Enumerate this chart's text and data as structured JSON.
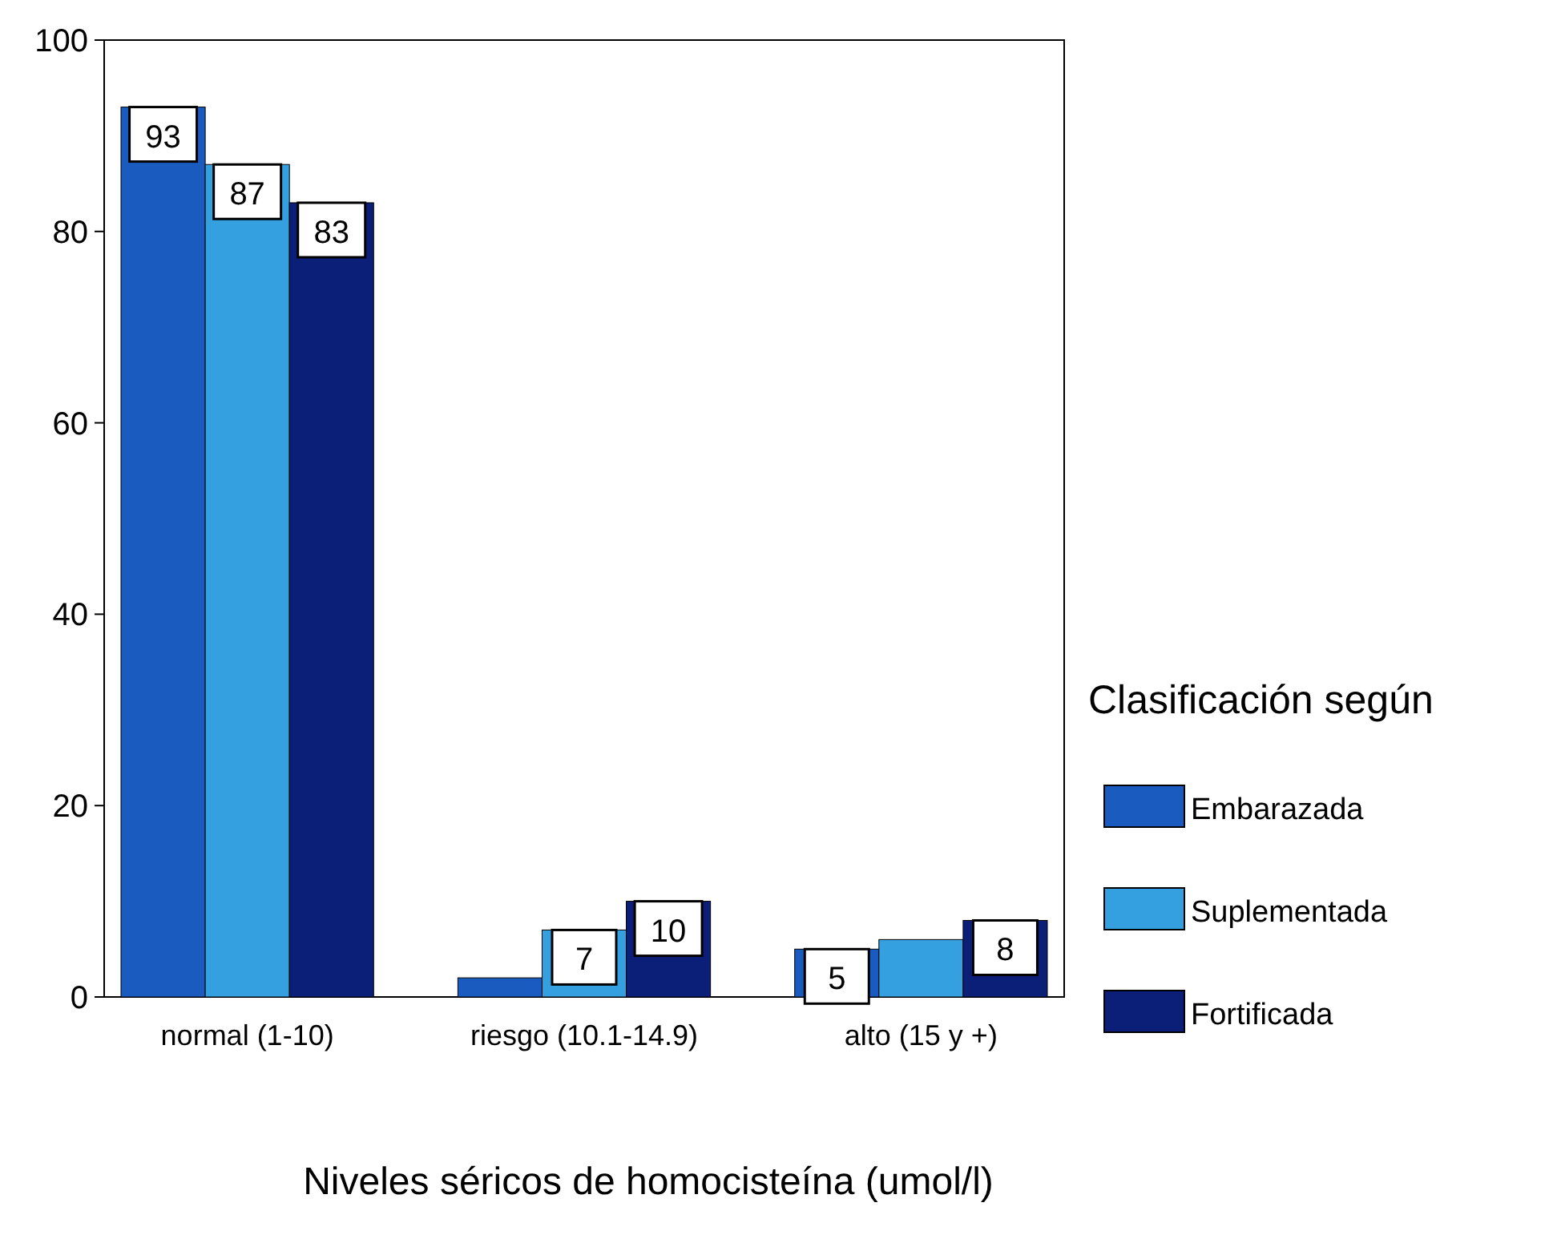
{
  "chart_data": {
    "type": "bar",
    "xlabel": "Niveles séricos de homocisteína (umol/l)",
    "legend_title": "Clasificación según",
    "categories": [
      "normal (1-10)",
      "riesgo (10.1-14.9)",
      "alto (15 y +)"
    ],
    "series": [
      {
        "name": "Embarazada",
        "color": "#1a5bbf",
        "values": [
          93,
          2,
          5
        ],
        "value_labels": [
          "93",
          null,
          "5"
        ]
      },
      {
        "name": "Suplementada",
        "color": "#35a0e0",
        "values": [
          87,
          7,
          6
        ],
        "value_labels": [
          "87",
          "7",
          null
        ]
      },
      {
        "name": "Fortificada",
        "color": "#0c1f78",
        "values": [
          83,
          10,
          8
        ],
        "value_labels": [
          "83",
          "10",
          "8"
        ]
      }
    ],
    "ylim": [
      0,
      100
    ],
    "yticks": [
      0,
      20,
      40,
      60,
      80,
      100
    ],
    "grid": false,
    "legend": "right"
  }
}
